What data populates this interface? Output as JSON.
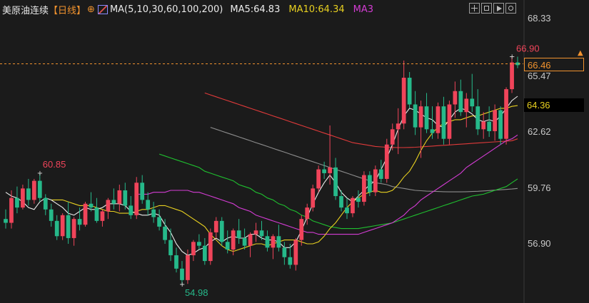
{
  "header": {
    "symbol": "美原油连续",
    "period": "【日线】",
    "ma_params": "MA(5,10,30,60,100,200)",
    "ma5": "MA5:64.83",
    "ma10": "MA10:64.34",
    "ma3": "MA3"
  },
  "colors": {
    "background": "#1b1b1b",
    "up": "#f0445a",
    "down": "#26b98a",
    "ma5": "#ececec",
    "ma10": "#e8d020",
    "ma30": "#d43cd4",
    "ma60": "#1fbf2f",
    "ma100": "#8c8c8c",
    "ma200": "#e03a3a"
  },
  "toolbar_icons": [
    "crosshair-icon",
    "indicator-grid-icon",
    "play-icon",
    "chart-settings-icon"
  ],
  "price_axis": {
    "ticks": [
      "68.33",
      "65.47",
      "62.62",
      "59.76",
      "56.90"
    ],
    "current_price_label": "66.46",
    "ma_price_label": "64.36"
  },
  "chart_data": {
    "type": "candlestick",
    "ylim": [
      54.0,
      68.9
    ],
    "annotations": {
      "high": "66.90",
      "low": "54.98",
      "local_high": "60.85"
    },
    "candles": [
      [
        58.4,
        58.9,
        57.9,
        58.2
      ],
      [
        58.2,
        59.9,
        57.9,
        59.5
      ],
      [
        59.5,
        60.1,
        58.7,
        59.0
      ],
      [
        59.0,
        60.2,
        58.9,
        60.0
      ],
      [
        60.0,
        60.5,
        59.1,
        59.4
      ],
      [
        59.4,
        60.5,
        59.2,
        60.4
      ],
      [
        60.4,
        60.8,
        59.3,
        59.5
      ],
      [
        59.5,
        59.7,
        58.6,
        58.9
      ],
      [
        58.9,
        59.2,
        58.0,
        58.3
      ],
      [
        58.3,
        58.6,
        57.3,
        57.5
      ],
      [
        57.5,
        58.7,
        57.3,
        58.6
      ],
      [
        58.6,
        59.3,
        57.1,
        57.4
      ],
      [
        57.4,
        58.5,
        57.0,
        58.4
      ],
      [
        58.4,
        59.0,
        57.8,
        58.1
      ],
      [
        58.1,
        59.3,
        58.0,
        59.2
      ],
      [
        59.2,
        59.8,
        58.8,
        59.0
      ],
      [
        59.0,
        59.5,
        58.2,
        58.3
      ],
      [
        58.3,
        58.9,
        58.0,
        58.8
      ],
      [
        58.8,
        59.5,
        58.4,
        59.4
      ],
      [
        59.4,
        60.0,
        58.9,
        59.2
      ],
      [
        59.2,
        60.2,
        58.8,
        59.9
      ],
      [
        59.9,
        60.3,
        58.9,
        59.1
      ],
      [
        59.1,
        59.6,
        58.4,
        58.6
      ],
      [
        58.6,
        60.6,
        58.4,
        60.3
      ],
      [
        60.3,
        60.7,
        59.2,
        59.4
      ],
      [
        59.4,
        59.8,
        58.6,
        58.9
      ],
      [
        58.9,
        59.3,
        58.2,
        58.5
      ],
      [
        58.5,
        58.9,
        57.8,
        58.0
      ],
      [
        58.0,
        58.4,
        57.1,
        57.3
      ],
      [
        57.3,
        57.9,
        56.2,
        56.5
      ],
      [
        56.5,
        56.9,
        55.6,
        55.8
      ],
      [
        55.8,
        56.2,
        54.98,
        55.2
      ],
      [
        55.2,
        56.8,
        55.0,
        56.5
      ],
      [
        56.5,
        57.3,
        56.2,
        57.2
      ],
      [
        57.2,
        57.6,
        56.8,
        57.0
      ],
      [
        57.0,
        57.4,
        56.0,
        56.2
      ],
      [
        56.2,
        57.9,
        56.0,
        57.7
      ],
      [
        57.7,
        58.5,
        57.4,
        58.3
      ],
      [
        58.3,
        58.5,
        57.0,
        57.2
      ],
      [
        57.2,
        57.8,
        56.6,
        56.8
      ],
      [
        56.8,
        57.9,
        56.5,
        57.8
      ],
      [
        57.8,
        58.4,
        57.1,
        57.4
      ],
      [
        57.4,
        57.9,
        56.8,
        57.0
      ],
      [
        57.0,
        57.7,
        56.4,
        57.6
      ],
      [
        57.6,
        58.2,
        57.2,
        57.8
      ],
      [
        57.8,
        58.3,
        57.3,
        57.5
      ],
      [
        57.5,
        57.8,
        56.7,
        56.9
      ],
      [
        56.9,
        57.6,
        56.3,
        57.5
      ],
      [
        57.5,
        58.1,
        56.7,
        56.9
      ],
      [
        56.9,
        57.2,
        56.0,
        56.4
      ],
      [
        56.4,
        57.1,
        55.8,
        56.0
      ],
      [
        56.0,
        57.4,
        55.7,
        57.3
      ],
      [
        57.3,
        58.6,
        57.0,
        58.4
      ],
      [
        58.4,
        59.2,
        58.1,
        59.0
      ],
      [
        59.0,
        60.2,
        58.8,
        60.0
      ],
      [
        60.0,
        61.2,
        59.8,
        61.0
      ],
      [
        61.0,
        61.4,
        60.5,
        60.8
      ],
      [
        60.8,
        63.3,
        60.2,
        61.1
      ],
      [
        61.1,
        61.6,
        59.4,
        59.6
      ],
      [
        59.6,
        59.9,
        58.8,
        59.0
      ],
      [
        59.0,
        59.5,
        58.4,
        58.7
      ],
      [
        58.7,
        59.6,
        58.5,
        59.5
      ],
      [
        59.5,
        59.9,
        59.0,
        59.3
      ],
      [
        59.3,
        60.9,
        59.1,
        60.7
      ],
      [
        60.7,
        60.9,
        59.6,
        59.8
      ],
      [
        59.8,
        61.2,
        59.6,
        61.0
      ],
      [
        61.0,
        61.5,
        60.3,
        60.5
      ],
      [
        60.5,
        62.6,
        60.3,
        62.3
      ],
      [
        62.3,
        63.4,
        62.0,
        63.1
      ],
      [
        63.1,
        64.2,
        61.8,
        63.4
      ],
      [
        63.4,
        66.7,
        63.1,
        65.8
      ],
      [
        65.8,
        66.1,
        64.2,
        64.4
      ],
      [
        64.4,
        65.1,
        62.8,
        63.2
      ],
      [
        63.2,
        64.6,
        61.6,
        64.3
      ],
      [
        64.3,
        65.0,
        62.9,
        63.1
      ],
      [
        63.1,
        64.3,
        62.6,
        62.9
      ],
      [
        62.9,
        64.5,
        62.6,
        64.3
      ],
      [
        64.3,
        64.8,
        62.3,
        62.6
      ],
      [
        62.6,
        64.6,
        62.3,
        64.4
      ],
      [
        64.4,
        65.6,
        63.7,
        65.1
      ],
      [
        65.1,
        65.7,
        63.8,
        64.0
      ],
      [
        64.0,
        65.0,
        63.2,
        64.7
      ],
      [
        64.7,
        66.0,
        64.0,
        64.3
      ],
      [
        64.3,
        65.2,
        62.8,
        63.1
      ],
      [
        63.1,
        64.0,
        62.6,
        63.5
      ],
      [
        63.5,
        64.3,
        62.7,
        63.0
      ],
      [
        63.0,
        64.4,
        62.5,
        64.1
      ],
      [
        64.1,
        64.3,
        62.3,
        62.6
      ],
      [
        62.6,
        65.3,
        62.3,
        65.2
      ],
      [
        65.2,
        66.9,
        65.0,
        66.6
      ],
      [
        66.6,
        66.9,
        66.3,
        66.46
      ]
    ],
    "ma_lines": [
      {
        "name": "MA5",
        "values": [
          59.8,
          59.6,
          59.5,
          59.3,
          59.0,
          58.9,
          59.3,
          59.5,
          59.4,
          59.2,
          59.0,
          58.7,
          58.6,
          58.8,
          59.0,
          58.9,
          58.9,
          59.0,
          59.2,
          59.2,
          59.2,
          59.1,
          58.8,
          58.7,
          58.6,
          58.6,
          58.7,
          58.6,
          58.1,
          57.7,
          57.1,
          56.7,
          56.5,
          56.6,
          56.8,
          56.9,
          57.2,
          57.4,
          57.2,
          57.4,
          57.5,
          57.4,
          57.4,
          57.6,
          57.6,
          57.4,
          57.3,
          57.3,
          57.2,
          56.9,
          56.9,
          57.2,
          57.8,
          58.5,
          59.2,
          59.8,
          60.3,
          60.7,
          60.3,
          59.8,
          59.5,
          59.3,
          59.6,
          59.9,
          60.2,
          60.4,
          61.0,
          61.6,
          62.3,
          63.1,
          63.8,
          64.2,
          64.1,
          63.9,
          63.7,
          63.6,
          63.3,
          63.2,
          63.6,
          64.0,
          64.2,
          64.1,
          63.9,
          63.6,
          63.5,
          63.6,
          63.5,
          63.8,
          64.2,
          64.6,
          64.83
        ]
      },
      {
        "name": "MA10",
        "values": [
          59.4,
          59.4,
          59.4,
          59.3,
          59.2,
          59.1,
          59.1,
          59.1,
          59.0,
          58.9,
          58.8,
          58.8,
          58.7,
          58.7,
          58.7,
          58.8,
          58.9,
          58.9,
          59.0,
          59.1,
          59.1,
          59.0,
          58.9,
          58.8,
          58.6,
          58.4,
          58.2,
          58.0,
          57.6,
          57.3,
          57.0,
          56.8,
          56.7,
          56.8,
          56.9,
          57.0,
          57.1,
          57.1,
          57.0,
          57.1,
          57.2,
          57.3,
          57.3,
          57.3,
          57.2,
          57.1,
          57.1,
          57.2,
          57.5,
          57.9,
          58.2,
          58.6,
          59.0,
          59.3,
          59.5,
          59.7,
          59.8,
          59.9,
          59.8,
          59.8,
          59.9,
          60.2,
          60.6,
          60.9,
          61.4,
          62.0,
          62.5,
          62.9,
          63.2,
          63.4,
          63.5,
          63.6,
          63.6,
          63.7,
          63.8,
          63.8,
          63.9,
          64.0,
          64.1,
          64.2,
          64.2,
          64.3,
          64.34
        ]
      },
      {
        "name": "MA30",
        "values": [
          59.7,
          59.7,
          59.7,
          59.8,
          59.8,
          59.8,
          59.9,
          59.9,
          59.9,
          59.9,
          59.8,
          59.8,
          59.7,
          59.6,
          59.5,
          59.4,
          59.3,
          59.2,
          59.0,
          58.9,
          58.8,
          58.6,
          58.5,
          58.4,
          58.3,
          58.2,
          58.1,
          58.0,
          57.9,
          57.8,
          57.7,
          57.7,
          57.6,
          57.6,
          57.6,
          57.6,
          57.6,
          57.6,
          57.6,
          57.6,
          57.7,
          57.8,
          57.9,
          58.0,
          58.1,
          58.2,
          58.4,
          58.6,
          58.9,
          59.1,
          59.4,
          59.6,
          59.8,
          60.0,
          60.2,
          60.4,
          60.6,
          60.8,
          61.1,
          61.3,
          61.5,
          61.7,
          61.9,
          62.1,
          62.3,
          62.5,
          62.6,
          62.8
        ]
      },
      {
        "name": "MA60",
        "values": [
          61.8,
          61.7,
          61.6,
          61.5,
          61.4,
          61.3,
          61.2,
          61.1,
          60.9,
          60.8,
          60.7,
          60.6,
          60.5,
          60.4,
          60.2,
          60.1,
          60.0,
          59.8,
          59.7,
          59.5,
          59.4,
          59.2,
          59.1,
          58.9,
          58.8,
          58.6,
          58.5,
          58.3,
          58.2,
          58.1,
          58.0,
          57.95,
          57.9,
          57.9,
          57.9,
          57.9,
          57.95,
          58.0,
          58.05,
          58.1,
          58.15,
          58.2,
          58.3,
          58.4,
          58.5,
          58.6,
          58.7,
          58.8,
          58.9,
          59.0,
          59.1,
          59.2,
          59.3,
          59.4,
          59.5,
          59.6,
          59.65,
          59.7,
          59.8,
          59.9,
          60.0,
          60.1,
          60.3,
          60.5
        ]
      },
      {
        "name": "MA100",
        "values": [
          63.2,
          63.1,
          63.0,
          62.9,
          62.8,
          62.7,
          62.6,
          62.5,
          62.4,
          62.3,
          62.2,
          62.1,
          62.0,
          61.9,
          61.8,
          61.7,
          61.6,
          61.5,
          61.4,
          61.3,
          61.2,
          61.1,
          61.0,
          60.9,
          60.8,
          60.7,
          60.6,
          60.5,
          60.4,
          60.3,
          60.25,
          60.2,
          60.1,
          60.05,
          60.0,
          59.95,
          59.9,
          59.88,
          59.86,
          59.85,
          59.84,
          59.83,
          59.82,
          59.82,
          59.82,
          59.83,
          59.84,
          59.85,
          59.87,
          59.89,
          59.91,
          59.93,
          59.95,
          59.97,
          60.0
        ]
      },
      {
        "name": "MA200",
        "values": [
          65.0,
          64.9,
          64.8,
          64.7,
          64.6,
          64.5,
          64.4,
          64.3,
          64.2,
          64.1,
          64.0,
          63.9,
          63.8,
          63.7,
          63.6,
          63.5,
          63.4,
          63.3,
          63.2,
          63.1,
          63.0,
          62.9,
          62.8,
          62.7,
          62.6,
          62.5,
          62.4,
          62.35,
          62.3,
          62.25,
          62.2,
          62.18,
          62.16,
          62.15,
          62.14,
          62.14,
          62.15,
          62.16,
          62.18,
          62.2,
          62.22,
          62.24,
          62.26,
          62.28,
          62.3,
          62.32,
          62.34,
          62.36,
          62.38,
          62.4,
          62.42,
          62.44,
          62.46,
          62.48,
          62.5,
          62.6
        ]
      }
    ]
  }
}
